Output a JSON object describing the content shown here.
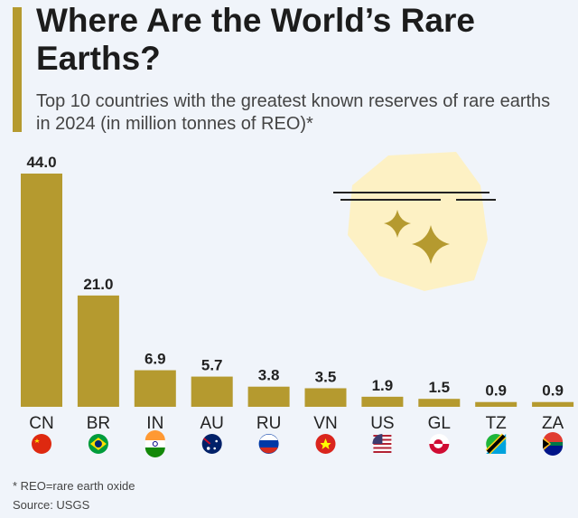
{
  "title": "Where Are the World’s Rare Earths?",
  "subtitle": "Top 10 countries with the greatest known reserves of rare earths in 2024 (in million tonnes of REO)*",
  "colors": {
    "bar": "#b59a2f",
    "background": "#f0f4fa",
    "illustration_bg": "#fdf1c4"
  },
  "footnote": "* REO=rare earth oxide",
  "source": "Source: USGS",
  "chart_data": {
    "type": "bar",
    "categories": [
      "CN",
      "BR",
      "IN",
      "AU",
      "RU",
      "VN",
      "US",
      "GL",
      "TZ",
      "ZA"
    ],
    "values": [
      44.0,
      21.0,
      6.9,
      5.7,
      3.8,
      3.5,
      1.9,
      1.5,
      0.9,
      0.9
    ],
    "data_labels": [
      "44.0",
      "21.0",
      "6.9",
      "5.7",
      "3.8",
      "3.5",
      "1.9",
      "1.5",
      "0.9",
      "0.9"
    ],
    "flags": [
      "china-flag",
      "brazil-flag",
      "india-flag",
      "australia-flag",
      "russia-flag",
      "vietnam-flag",
      "usa-flag",
      "greenland-flag",
      "tanzania-flag",
      "south-africa-flag"
    ],
    "ylim": [
      0,
      44
    ],
    "grid": false
  }
}
